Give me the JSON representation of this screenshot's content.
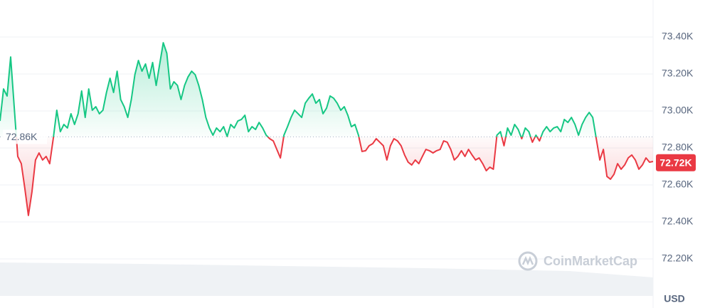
{
  "chart_data": {
    "type": "line",
    "up_color": "#16c784",
    "down_color": "#ea3943",
    "grid": true,
    "ylim": [
      72000,
      73600
    ],
    "yticks": [
      {
        "value": 72200,
        "label": "72.20K"
      },
      {
        "value": 72400,
        "label": "72.40K"
      },
      {
        "value": 72600,
        "label": "72.60K"
      },
      {
        "value": 72800,
        "label": "72.80K"
      },
      {
        "value": 73000,
        "label": "73.00K"
      },
      {
        "value": 73200,
        "label": "73.20K"
      },
      {
        "value": 73400,
        "label": "73.40K"
      }
    ],
    "baseline": {
      "value": 72860,
      "label": "72.86K"
    },
    "last_price": {
      "value": 72720,
      "label": "72.72K"
    },
    "y_axis_unit": "USD",
    "watermark": "CoinMarketCap",
    "values": [
      72946,
      73119,
      73081,
      73292,
      73023,
      72754,
      72715,
      72581,
      72435,
      72562,
      72735,
      72773,
      72735,
      72754,
      72715,
      72850,
      73004,
      72888,
      72927,
      72908,
      72985,
      72927,
      72985,
      73108,
      72965,
      73119,
      73004,
      73023,
      72985,
      73004,
      73100,
      73177,
      73100,
      73215,
      73062,
      73023,
      72965,
      73062,
      73196,
      73273,
      73215,
      73254,
      73177,
      73262,
      73138,
      73254,
      73369,
      73312,
      73119,
      73158,
      73138,
      73062,
      73138,
      73185,
      73215,
      73196,
      73138,
      73062,
      72965,
      72908,
      72869,
      72908,
      72888,
      72915,
      72862,
      72927,
      72908,
      72946,
      72954,
      72977,
      72888,
      72915,
      72900,
      72938,
      72908,
      72869,
      72850,
      72838,
      72792,
      72746,
      72869,
      72915,
      72965,
      73004,
      72985,
      72965,
      73042,
      73069,
      73092,
      73042,
      73062,
      72985,
      73015,
      73081,
      73069,
      73042,
      73004,
      73023,
      72977,
      72915,
      72927,
      72869,
      72781,
      72785,
      72812,
      72823,
      72850,
      72831,
      72812,
      72735,
      72812,
      72850,
      72838,
      72812,
      72762,
      72723,
      72708,
      72735,
      72715,
      72754,
      72792,
      72785,
      72773,
      72785,
      72792,
      72838,
      72831,
      72792,
      72735,
      72754,
      72785,
      72754,
      72792,
      72762,
      72735,
      72746,
      72715,
      72677,
      72696,
      72685,
      72869,
      72888,
      72812,
      72908,
      72869,
      72927,
      72900,
      72850,
      72908,
      72888,
      72831,
      72869,
      72838,
      72888,
      72915,
      72888,
      72908,
      72915,
      72888,
      72954,
      72938,
      72965,
      72927,
      72869,
      72927,
      72965,
      72992,
      72965,
      72850,
      72735,
      72792,
      72646,
      72631,
      72658,
      72715,
      72685,
      72708,
      72746,
      72762,
      72735,
      72685,
      72708,
      72746,
      72723,
      72727
    ]
  }
}
